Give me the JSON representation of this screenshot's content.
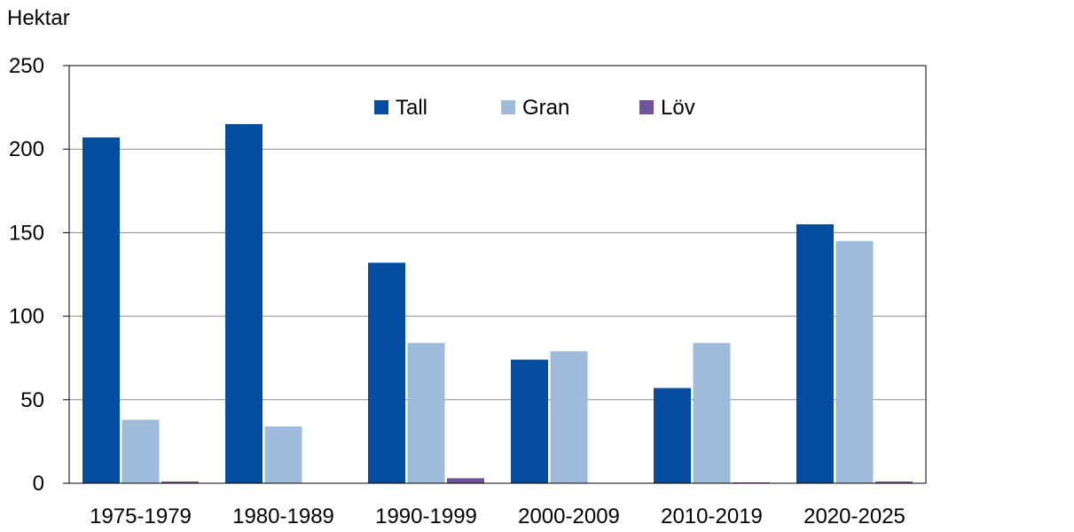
{
  "chart_data": {
    "type": "bar",
    "ylabel": "Hektar",
    "categories": [
      "1975-1979",
      "1980-1989",
      "1990-1999",
      "2000-2009",
      "2010-2019",
      "2020-2025"
    ],
    "series": [
      {
        "name": "Tall",
        "color": "#054da1",
        "values": [
          207,
          215,
          132,
          74,
          57,
          155
        ]
      },
      {
        "name": "Gran",
        "color": "#9fbbdb",
        "values": [
          38,
          34,
          84,
          79,
          84,
          145
        ]
      },
      {
        "name": "Löv",
        "color": "#7052a0",
        "values": [
          1,
          0,
          3,
          0,
          0.5,
          1
        ]
      }
    ],
    "ylim": [
      0,
      250
    ],
    "yticks": [
      0,
      50,
      100,
      150,
      200,
      250
    ],
    "grid": true,
    "legend_position": "top-center"
  }
}
